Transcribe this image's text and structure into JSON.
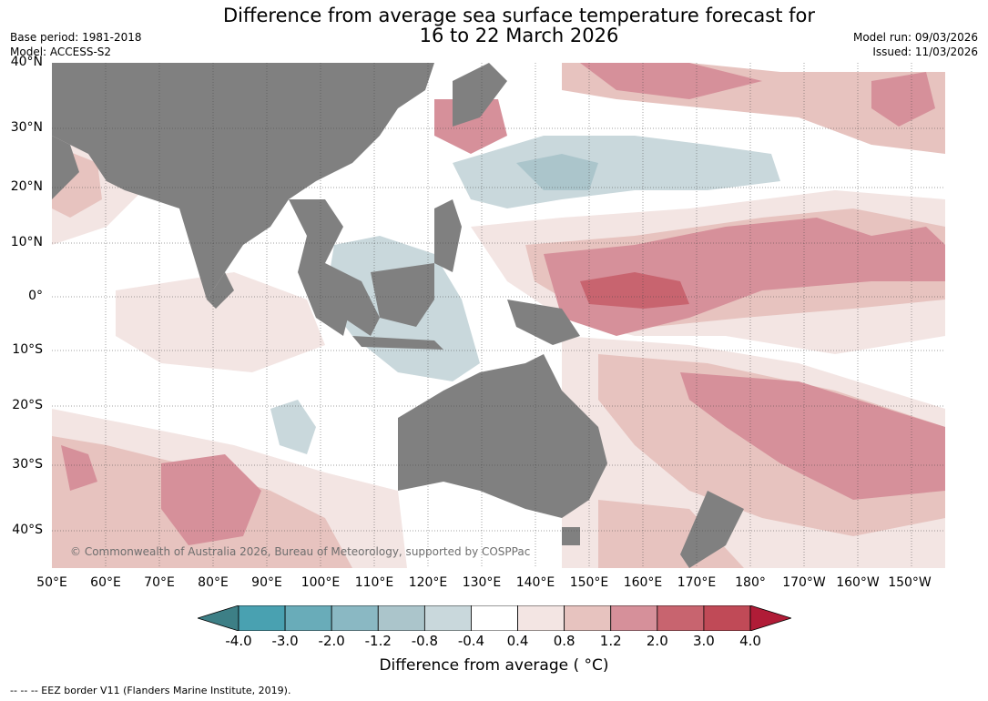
{
  "title": {
    "line1": "Difference from average sea surface temperature forecast for",
    "line2": "16 to 22 March 2026"
  },
  "meta": {
    "base_period": "Base period: 1981-2018",
    "model": "Model: ACCESS-S2",
    "model_run": "Model run: 09/03/2026",
    "issued": "Issued: 11/03/2026"
  },
  "latitudes": [
    "40°N",
    "30°N",
    "20°N",
    "10°N",
    "0°",
    "10°S",
    "20°S",
    "30°S",
    "40°S"
  ],
  "longitudes": [
    "50°E",
    "60°E",
    "70°E",
    "80°E",
    "90°E",
    "100°E",
    "110°E",
    "120°E",
    "130°E",
    "140°E",
    "150°E",
    "160°E",
    "170°E",
    "180°",
    "170°W",
    "160°W",
    "150°W"
  ],
  "copyright": "© Commonwealth of Australia 2026, Bureau of Meteorology, supported by COSPPac",
  "legend": {
    "title": "Difference from average ( °C)",
    "ticks": [
      "-4.0",
      "-3.0",
      "-2.0",
      "-1.2",
      "-0.8",
      "-0.4",
      "0.4",
      "0.8",
      "1.2",
      "2.0",
      "3.0",
      "4.0"
    ],
    "colors": [
      "#3d7f86",
      "#49a1b1",
      "#69acb9",
      "#8ab8c3",
      "#abc5cb",
      "#c9d8dc",
      "#ffffff",
      "#f3e5e3",
      "#e7c3bf",
      "#d6909a",
      "#c8646f",
      "#c04a57",
      "#b01c37"
    ]
  },
  "footnote": "--  --  -- EEZ border V11 (Flanders Marine Institute, 2019).",
  "colors": {
    "land": "#808080",
    "grid": "#444444"
  }
}
